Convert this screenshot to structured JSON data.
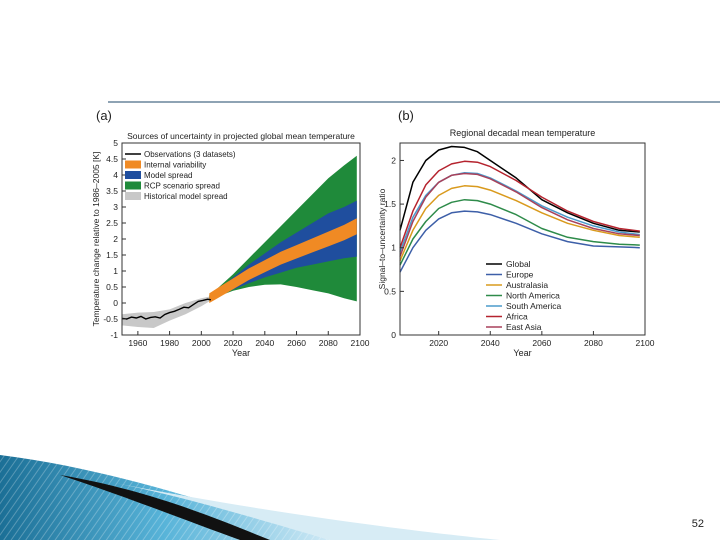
{
  "slide": {
    "page_number": "52"
  },
  "chart_data": [
    {
      "type": "area",
      "panel_label": "(a)",
      "title": "Sources of uncertainty in projected global mean temperature",
      "xlabel": "Year",
      "ylabel": "Temperature change relative to 1986–2005 [K]",
      "xlim": [
        1950,
        2100
      ],
      "ylim": [
        -1,
        5
      ],
      "xticks": [
        1960,
        1980,
        2000,
        2020,
        2040,
        2060,
        2080,
        2100
      ],
      "yticks": [
        -1,
        -0.5,
        0,
        0.5,
        1,
        1.5,
        2,
        2.5,
        3,
        3.5,
        4,
        4.5,
        5
      ],
      "legend_position": "top-left",
      "legend": [
        {
          "label": "Observations (3 datasets)",
          "color": "#000000",
          "kind": "line"
        },
        {
          "label": "Internal variability",
          "color": "#f08a24",
          "kind": "patch"
        },
        {
          "label": "Model spread",
          "color": "#1f4e9e",
          "kind": "patch"
        },
        {
          "label": "RCP scenario spread",
          "color": "#1f8a3a",
          "kind": "patch"
        },
        {
          "label": "Historical model spread",
          "color": "#c8c8c8",
          "kind": "patch"
        }
      ],
      "observations": {
        "x": [
          1950,
          1953,
          1956,
          1959,
          1962,
          1965,
          1968,
          1971,
          1974,
          1977,
          1980,
          1983,
          1986,
          1989,
          1992,
          1995,
          1998,
          2001,
          2004,
          2006
        ],
        "y": [
          -0.48,
          -0.5,
          -0.44,
          -0.47,
          -0.42,
          -0.5,
          -0.45,
          -0.43,
          -0.47,
          -0.36,
          -0.3,
          -0.26,
          -0.2,
          -0.13,
          -0.15,
          -0.05,
          0.05,
          0.08,
          0.12,
          0.1
        ]
      },
      "historical_spread": {
        "x": [
          1950,
          1960,
          1970,
          1980,
          1990,
          2000,
          2005
        ],
        "lower": [
          -0.7,
          -0.75,
          -0.78,
          -0.55,
          -0.35,
          -0.1,
          0.05
        ],
        "upper": [
          -0.35,
          -0.3,
          -0.28,
          -0.2,
          0.0,
          0.15,
          0.2
        ]
      },
      "projection": {
        "x": [
          2005,
          2010,
          2020,
          2030,
          2040,
          2050,
          2060,
          2070,
          2080,
          2090,
          2098
        ],
        "central": [
          0.15,
          0.3,
          0.6,
          0.9,
          1.15,
          1.4,
          1.6,
          1.8,
          2.0,
          2.2,
          2.4
        ],
        "internal_half_width": [
          0.15,
          0.16,
          0.17,
          0.18,
          0.19,
          0.2,
          0.21,
          0.22,
          0.23,
          0.24,
          0.25
        ],
        "model_lower": [
          0.1,
          0.22,
          0.42,
          0.62,
          0.8,
          0.95,
          1.1,
          1.2,
          1.3,
          1.4,
          1.45
        ],
        "model_upper": [
          0.2,
          0.4,
          0.8,
          1.2,
          1.55,
          1.9,
          2.2,
          2.5,
          2.8,
          3.0,
          3.2
        ],
        "scenario_lower": [
          0.05,
          0.2,
          0.38,
          0.5,
          0.57,
          0.58,
          0.5,
          0.4,
          0.3,
          0.15,
          0.05
        ],
        "scenario_upper": [
          0.25,
          0.45,
          0.9,
          1.4,
          1.9,
          2.4,
          2.9,
          3.4,
          3.9,
          4.3,
          4.6
        ]
      }
    },
    {
      "type": "line",
      "panel_label": "(b)",
      "title": "Regional decadal mean temperature",
      "xlabel": "Year",
      "ylabel": "Signal–to–uncertainty ratio",
      "xlim": [
        2005,
        2100
      ],
      "ylim": [
        0,
        2.2
      ],
      "xticks": [
        2020,
        2040,
        2060,
        2080,
        2100
      ],
      "yticks": [
        0,
        0.5,
        1,
        1.5,
        2
      ],
      "legend_position": "lower-center",
      "x": [
        2005,
        2010,
        2015,
        2020,
        2025,
        2030,
        2035,
        2040,
        2050,
        2060,
        2070,
        2080,
        2090,
        2098
      ],
      "series": [
        {
          "name": "Global",
          "color": "#000000",
          "values": [
            1.2,
            1.75,
            2.0,
            2.12,
            2.16,
            2.15,
            2.1,
            2.0,
            1.8,
            1.55,
            1.4,
            1.28,
            1.2,
            1.18
          ]
        },
        {
          "name": "Europe",
          "color": "#3d5fa8",
          "values": [
            0.72,
            1.0,
            1.2,
            1.33,
            1.4,
            1.42,
            1.41,
            1.38,
            1.28,
            1.16,
            1.07,
            1.02,
            1.01,
            1.0
          ]
        },
        {
          "name": "Australasia",
          "color": "#d99a1d",
          "values": [
            0.85,
            1.2,
            1.45,
            1.6,
            1.68,
            1.71,
            1.7,
            1.66,
            1.54,
            1.4,
            1.28,
            1.2,
            1.14,
            1.12
          ]
        },
        {
          "name": "North America",
          "color": "#2e8b4a",
          "values": [
            0.8,
            1.1,
            1.3,
            1.45,
            1.52,
            1.55,
            1.54,
            1.5,
            1.38,
            1.22,
            1.12,
            1.07,
            1.04,
            1.03
          ]
        },
        {
          "name": "South America",
          "color": "#4a9acb",
          "values": [
            0.95,
            1.35,
            1.6,
            1.75,
            1.83,
            1.86,
            1.85,
            1.8,
            1.65,
            1.48,
            1.35,
            1.25,
            1.18,
            1.15
          ]
        },
        {
          "name": "Africa",
          "color": "#b5232e",
          "values": [
            1.0,
            1.42,
            1.72,
            1.88,
            1.96,
            1.99,
            1.98,
            1.93,
            1.77,
            1.58,
            1.42,
            1.3,
            1.22,
            1.19
          ]
        },
        {
          "name": "East Asia",
          "color": "#a8415a",
          "values": [
            0.9,
            1.3,
            1.58,
            1.75,
            1.83,
            1.85,
            1.84,
            1.79,
            1.64,
            1.46,
            1.32,
            1.22,
            1.16,
            1.14
          ]
        }
      ]
    }
  ]
}
